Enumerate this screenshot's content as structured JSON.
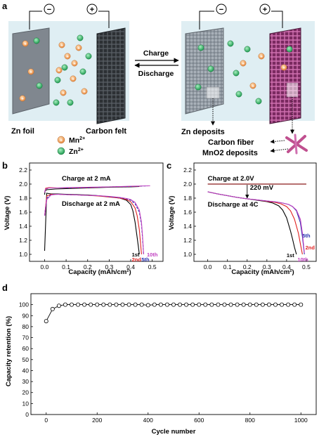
{
  "panel_a": {
    "letter": "a",
    "left": {
      "anode": "Zn foil",
      "cathode": "Carbon felt"
    },
    "right": {
      "anode_deposit": "Zn deposits",
      "cathode_fiber": "Carbon fiber",
      "cathode_deposit": "MnO2 deposits"
    },
    "arrows": {
      "forward": "Charge",
      "backward": "Discharge"
    },
    "terminals": {
      "negative": "−",
      "positive": "+"
    },
    "legend": [
      {
        "base": "Mn",
        "sup": "2+",
        "color": "#f0a060"
      },
      {
        "base": "Zn",
        "sup": "2+",
        "color": "#3fb870"
      }
    ],
    "colors": {
      "electrolyte": "#dfeef3",
      "zn_foil": "#808790",
      "carbon": "#3c4146",
      "mno2": "#a0407c"
    }
  },
  "chart_data": [
    {
      "id": "b",
      "letter": "b",
      "type": "line",
      "xlabel": "Capacity (mAh/cm²)",
      "ylabel": "Voltage (V)",
      "xlim": [
        -0.07,
        0.55
      ],
      "ylim": [
        0.9,
        2.3
      ],
      "xticks": [
        "0.0",
        "0.1",
        "0.2",
        "0.3",
        "0.4",
        "0.5"
      ],
      "xtick_values": [
        0.0,
        0.1,
        0.2,
        0.3,
        0.4,
        0.5
      ],
      "yticks": [
        "1.0",
        "1.2",
        "1.4",
        "1.6",
        "1.8",
        "2.0",
        "2.2"
      ],
      "ytick_values": [
        1.0,
        1.2,
        1.4,
        1.6,
        1.8,
        2.0,
        2.2
      ],
      "annotations": [
        {
          "text": "Charge at 2 mA",
          "x": 0.08,
          "y": 2.05
        },
        {
          "text": "Discharge at 2 mA",
          "x": 0.08,
          "y": 1.69
        }
      ],
      "series": [
        {
          "name": "1st",
          "color": "#000000",
          "dash": false,
          "x": [
            0.0,
            0.01,
            0.03,
            0.06,
            0.1,
            0.15,
            0.2,
            0.25,
            0.3,
            0.35,
            0.38,
            0.4,
            0.41,
            0.42,
            0.43,
            0.435,
            0.44
          ],
          "y": [
            1.05,
            1.87,
            1.86,
            1.86,
            1.855,
            1.85,
            1.845,
            1.835,
            1.82,
            1.8,
            1.77,
            1.71,
            1.62,
            1.46,
            1.24,
            1.12,
            1.0
          ],
          "cx": [
            0.0,
            0.002,
            0.01,
            0.05,
            0.1,
            0.2,
            0.3,
            0.4,
            0.44
          ],
          "cy": [
            1.85,
            1.9,
            1.92,
            1.93,
            1.935,
            1.945,
            1.955,
            1.96,
            1.965
          ]
        },
        {
          "name": "2nd",
          "color": "#e02020",
          "dash": false,
          "x": [
            0.0,
            0.01,
            0.03,
            0.06,
            0.1,
            0.15,
            0.2,
            0.25,
            0.3,
            0.35,
            0.38,
            0.4,
            0.42,
            0.43,
            0.44,
            0.445,
            0.45
          ],
          "y": [
            1.55,
            1.83,
            1.855,
            1.855,
            1.85,
            1.845,
            1.84,
            1.83,
            1.815,
            1.8,
            1.78,
            1.75,
            1.66,
            1.55,
            1.35,
            1.18,
            1.0
          ],
          "cx": [
            0.0,
            0.005,
            0.02,
            0.06,
            0.1,
            0.2,
            0.3,
            0.4,
            0.45
          ],
          "cy": [
            1.88,
            1.94,
            1.95,
            1.945,
            1.945,
            1.95,
            1.96,
            1.965,
            1.97
          ]
        },
        {
          "name": "5th",
          "color": "#2830b0",
          "dash": true,
          "x": [
            0.0,
            0.01,
            0.03,
            0.06,
            0.1,
            0.15,
            0.2,
            0.25,
            0.3,
            0.35,
            0.38,
            0.4,
            0.42,
            0.44,
            0.45,
            0.455,
            0.46
          ],
          "y": [
            1.55,
            1.8,
            1.85,
            1.855,
            1.85,
            1.845,
            1.84,
            1.835,
            1.82,
            1.805,
            1.79,
            1.77,
            1.72,
            1.6,
            1.42,
            1.22,
            1.0
          ],
          "cx": [
            0.0,
            0.005,
            0.02,
            0.06,
            0.1,
            0.2,
            0.3,
            0.4,
            0.48
          ],
          "cy": [
            1.88,
            1.93,
            1.945,
            1.945,
            1.945,
            1.95,
            1.96,
            1.965,
            1.975
          ]
        },
        {
          "name": "10th",
          "color": "#c040c0",
          "dash": false,
          "x": [
            0.0,
            0.01,
            0.03,
            0.06,
            0.1,
            0.15,
            0.2,
            0.25,
            0.3,
            0.35,
            0.38,
            0.4,
            0.42,
            0.44,
            0.45,
            0.455,
            0.46
          ],
          "y": [
            1.55,
            1.78,
            1.845,
            1.855,
            1.85,
            1.845,
            1.84,
            1.835,
            1.825,
            1.81,
            1.795,
            1.78,
            1.74,
            1.63,
            1.45,
            1.25,
            1.0
          ],
          "cx": [
            0.0,
            0.005,
            0.02,
            0.06,
            0.1,
            0.2,
            0.3,
            0.4,
            0.49
          ],
          "cy": [
            1.88,
            1.93,
            1.945,
            1.945,
            1.95,
            1.955,
            1.96,
            1.97,
            1.975
          ]
        }
      ]
    },
    {
      "id": "c",
      "letter": "c",
      "type": "line",
      "xlabel": "Capacity (mAh/cm²)",
      "ylabel": "Voltage (V)",
      "xlim": [
        -0.07,
        0.55
      ],
      "ylim": [
        0.9,
        2.3
      ],
      "xticks": [
        "0.0",
        "0.1",
        "0.2",
        "0.3",
        "0.4",
        "0.5"
      ],
      "xtick_values": [
        0.0,
        0.1,
        0.2,
        0.3,
        0.4,
        0.5
      ],
      "yticks": [
        "1.0",
        "1.2",
        "1.4",
        "1.6",
        "1.8",
        "2.0",
        "2.2"
      ],
      "ytick_values": [
        1.0,
        1.2,
        1.4,
        1.6,
        1.8,
        2.0,
        2.2
      ],
      "charge_line": {
        "label": "Charge at 2.0V",
        "y": 2.0,
        "color": "#8b1a1a"
      },
      "gap_label": "220 mV",
      "gap_x": 0.2,
      "discharge_label": "Discharge at 4C",
      "series": [
        {
          "name": "1st",
          "color": "#000000",
          "x": [
            0.0,
            0.05,
            0.1,
            0.15,
            0.2,
            0.25,
            0.3,
            0.33,
            0.36,
            0.38,
            0.4,
            0.42,
            0.43,
            0.44,
            0.45
          ],
          "y": [
            1.89,
            1.86,
            1.835,
            1.81,
            1.79,
            1.77,
            1.75,
            1.73,
            1.69,
            1.63,
            1.52,
            1.33,
            1.22,
            1.1,
            1.0
          ]
        },
        {
          "name": "2nd",
          "color": "#e02020",
          "x": [
            0.0,
            0.05,
            0.1,
            0.15,
            0.2,
            0.25,
            0.3,
            0.34,
            0.37,
            0.4,
            0.42,
            0.44,
            0.46,
            0.47,
            0.48
          ],
          "y": [
            1.89,
            1.86,
            1.835,
            1.81,
            1.79,
            1.775,
            1.755,
            1.74,
            1.72,
            1.68,
            1.62,
            1.5,
            1.3,
            1.15,
            1.0
          ]
        },
        {
          "name": "5th",
          "color": "#2830b0",
          "x": [
            0.0,
            0.05,
            0.1,
            0.15,
            0.2,
            0.25,
            0.3,
            0.35,
            0.38,
            0.41,
            0.43,
            0.45,
            0.47,
            0.48,
            0.49
          ],
          "y": [
            1.89,
            1.86,
            1.835,
            1.81,
            1.79,
            1.775,
            1.76,
            1.745,
            1.73,
            1.71,
            1.68,
            1.62,
            1.45,
            1.25,
            1.0
          ]
        },
        {
          "name": "10th",
          "color": "#c040c0",
          "x": [
            0.0,
            0.05,
            0.1,
            0.15,
            0.2,
            0.25,
            0.3,
            0.35,
            0.38,
            0.41,
            0.43,
            0.45,
            0.47,
            0.48,
            0.49
          ],
          "y": [
            1.89,
            1.86,
            1.835,
            1.81,
            1.79,
            1.775,
            1.76,
            1.745,
            1.73,
            1.71,
            1.68,
            1.63,
            1.5,
            1.3,
            1.02
          ]
        }
      ]
    },
    {
      "id": "d",
      "letter": "d",
      "type": "line",
      "xlabel": "Cycle number",
      "ylabel": "Capacity retention (%)",
      "xlim": [
        -60,
        1060
      ],
      "ylim": [
        0,
        110
      ],
      "xticks": [
        "0",
        "200",
        "400",
        "600",
        "800",
        "1000"
      ],
      "xtick_values": [
        0,
        200,
        400,
        600,
        800,
        1000
      ],
      "yticks": [
        "0",
        "10",
        "20",
        "30",
        "40",
        "50",
        "60",
        "70",
        "80",
        "90",
        "100"
      ],
      "ytick_values": [
        0,
        10,
        20,
        30,
        40,
        50,
        60,
        70,
        80,
        90,
        100
      ],
      "series": [
        {
          "name": "retention",
          "color": "#000000",
          "marker": "open-circle",
          "x": [
            0,
            25,
            50,
            75,
            100,
            125,
            150,
            175,
            200,
            225,
            250,
            275,
            300,
            325,
            350,
            375,
            400,
            425,
            450,
            475,
            500,
            525,
            550,
            575,
            600,
            625,
            650,
            675,
            700,
            725,
            750,
            775,
            800,
            825,
            850,
            875,
            900,
            925,
            950,
            975,
            1000
          ],
          "y": [
            85,
            96,
            99,
            100,
            100,
            100,
            100,
            100,
            100,
            100,
            100,
            100,
            100,
            100,
            100,
            100,
            99.5,
            100,
            100,
            100,
            100,
            100,
            100,
            100,
            100,
            100,
            100,
            100,
            100,
            100,
            100,
            100,
            100,
            100,
            100,
            100,
            100,
            100,
            100,
            100,
            100
          ]
        }
      ]
    }
  ]
}
